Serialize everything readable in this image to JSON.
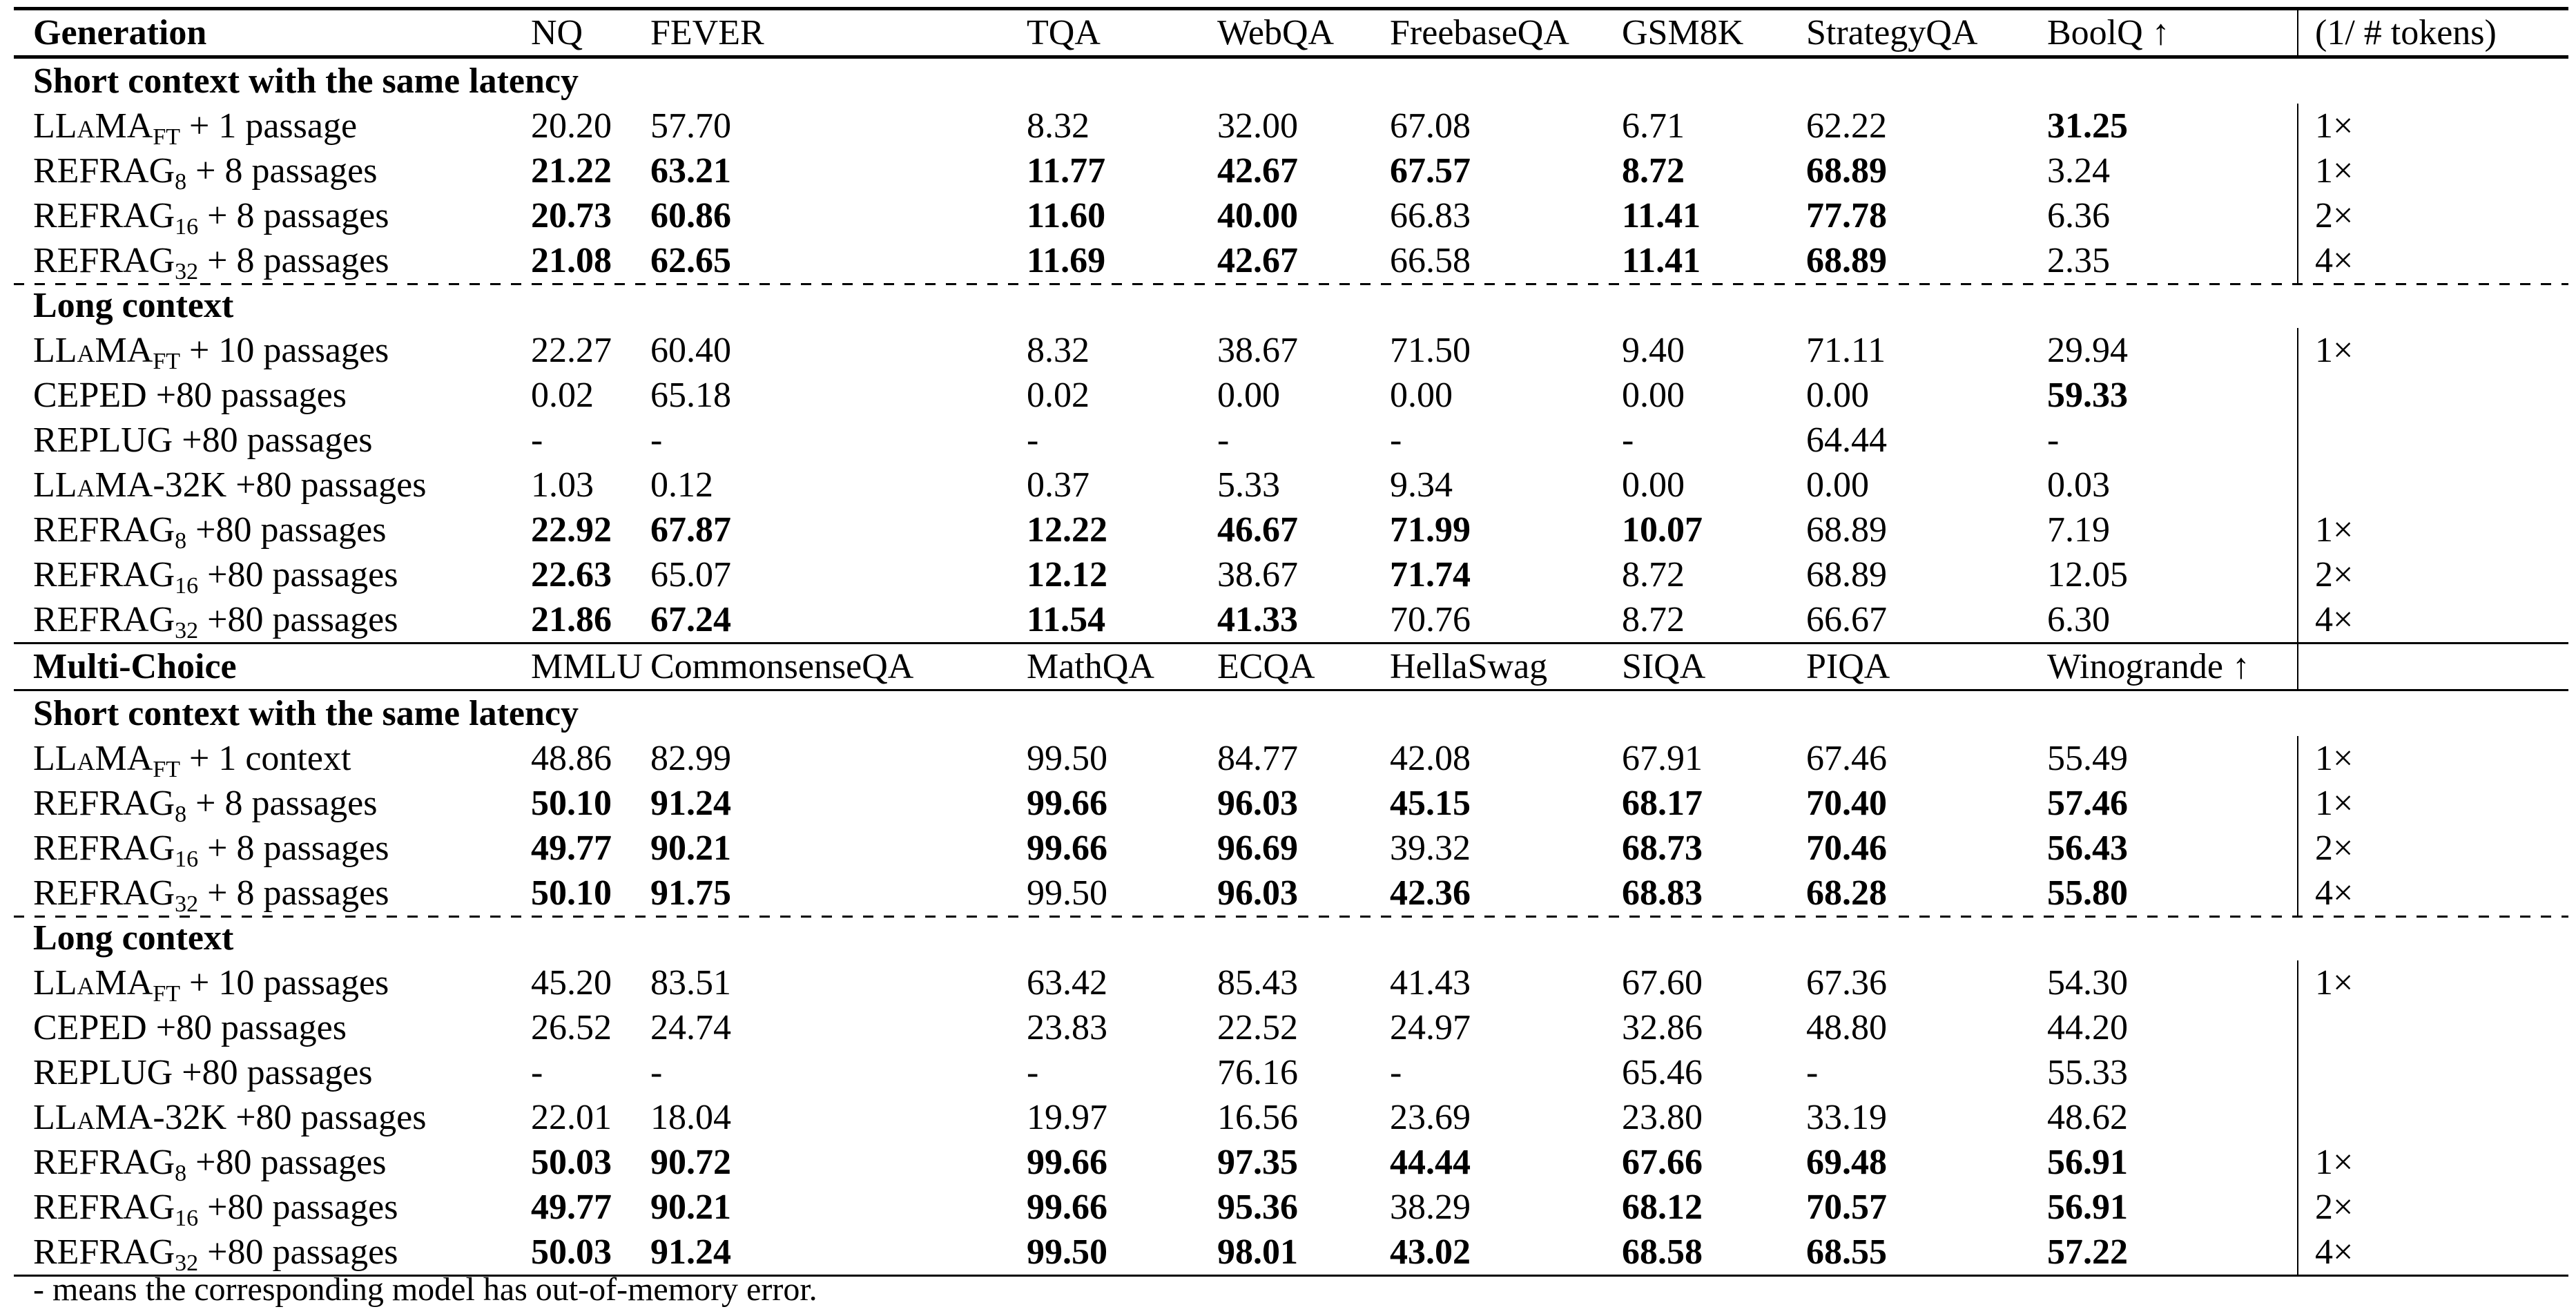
{
  "blocks": [
    {
      "header": [
        "Generation",
        "NQ",
        "FEVER",
        "TQA",
        "WebQA",
        "FreebaseQA",
        "GSM8K",
        "StrategyQA",
        "BoolQ ↑",
        "(1/ # tokens)"
      ],
      "groups": [
        {
          "title": "Short context with the same latency",
          "rows": [
            {
              "model": "LLaMA",
              "sub": "FT",
              "suffix": " + 1 passage",
              "values": [
                "20.20",
                "57.70",
                "8.32",
                "32.00",
                "67.08",
                "6.71",
                "62.22",
                "31.25"
              ],
              "bold": [
                7
              ],
              "ratio": "1×"
            },
            {
              "model": "REFRAG",
              "sub": "8",
              "suffix": " + 8 passages",
              "values": [
                "21.22",
                "63.21",
                "11.77",
                "42.67",
                "67.57",
                "8.72",
                "68.89",
                "3.24"
              ],
              "bold": [
                0,
                1,
                2,
                3,
                4,
                5,
                6
              ],
              "ratio": "1×"
            },
            {
              "model": "REFRAG",
              "sub": "16",
              "suffix": " + 8 passages",
              "values": [
                "20.73",
                "60.86",
                "11.60",
                "40.00",
                "66.83",
                "11.41",
                "77.78",
                "6.36"
              ],
              "bold": [
                0,
                1,
                2,
                3,
                5,
                6
              ],
              "ratio": "2×"
            },
            {
              "model": "REFRAG",
              "sub": "32",
              "suffix": " + 8 passages",
              "values": [
                "21.08",
                "62.65",
                "11.69",
                "42.67",
                "66.58",
                "11.41",
                "68.89",
                "2.35"
              ],
              "bold": [
                0,
                1,
                2,
                3,
                5,
                6
              ],
              "ratio": "4×"
            }
          ]
        },
        {
          "title": "Long context",
          "rows": [
            {
              "model": "LLaMA",
              "sub": "FT",
              "suffix": " + 10 passages",
              "values": [
                "22.27",
                "60.40",
                "8.32",
                "38.67",
                "71.50",
                "9.40",
                "71.11",
                "29.94"
              ],
              "bold": [],
              "ratio": "1×"
            },
            {
              "model": "CEPED",
              "sub": "",
              "suffix": " +80 passages",
              "values": [
                "0.02",
                "65.18",
                "0.02",
                "0.00",
                "0.00",
                "0.00",
                "0.00",
                "59.33"
              ],
              "bold": [
                7
              ],
              "ratio": ""
            },
            {
              "model": "REPLUG",
              "sub": "",
              "suffix": " +80 passages",
              "values": [
                "-",
                "-",
                "-",
                "-",
                "-",
                "-",
                "64.44",
                "-"
              ],
              "bold": [],
              "ratio": ""
            },
            {
              "model": "LLaMA",
              "sub": "",
              "suffix": "-32K +80 passages",
              "values": [
                "1.03",
                "0.12",
                "0.37",
                "5.33",
                "9.34",
                "0.00",
                "0.00",
                "0.03"
              ],
              "bold": [],
              "ratio": ""
            },
            {
              "model": "REFRAG",
              "sub": "8",
              "suffix": " +80 passages",
              "values": [
                "22.92",
                "67.87",
                "12.22",
                "46.67",
                "71.99",
                "10.07",
                "68.89",
                "7.19"
              ],
              "bold": [
                0,
                1,
                2,
                3,
                4,
                5
              ],
              "ratio": "1×"
            },
            {
              "model": "REFRAG",
              "sub": "16",
              "suffix": " +80 passages",
              "values": [
                "22.63",
                "65.07",
                "12.12",
                "38.67",
                "71.74",
                "8.72",
                "68.89",
                "12.05"
              ],
              "bold": [
                0,
                2,
                4
              ],
              "ratio": "2×"
            },
            {
              "model": "REFRAG",
              "sub": "32",
              "suffix": " +80 passages",
              "values": [
                "21.86",
                "67.24",
                "11.54",
                "41.33",
                "70.76",
                "8.72",
                "66.67",
                "6.30"
              ],
              "bold": [
                0,
                1,
                2,
                3
              ],
              "ratio": "4×"
            }
          ]
        }
      ]
    },
    {
      "header": [
        "Multi-Choice",
        "MMLU",
        "CommonsenseQA",
        "MathQA",
        "ECQA",
        "HellaSwag",
        "SIQA",
        "PIQA",
        "Winogrande ↑",
        ""
      ],
      "groups": [
        {
          "title": "Short context with the same latency",
          "rows": [
            {
              "model": "LLaMA",
              "sub": "FT",
              "suffix": " + 1 context",
              "values": [
                "48.86",
                "82.99",
                "99.50",
                "84.77",
                "42.08",
                "67.91",
                "67.46",
                "55.49"
              ],
              "bold": [],
              "ratio": "1×"
            },
            {
              "model": "REFRAG",
              "sub": "8",
              "suffix": " + 8 passages",
              "values": [
                "50.10",
                "91.24",
                "99.66",
                "96.03",
                "45.15",
                "68.17",
                "70.40",
                "57.46"
              ],
              "bold": [
                0,
                1,
                2,
                3,
                4,
                5,
                6,
                7
              ],
              "ratio": "1×"
            },
            {
              "model": "REFRAG",
              "sub": "16",
              "suffix": " + 8 passages",
              "values": [
                "49.77",
                "90.21",
                "99.66",
                "96.69",
                "39.32",
                "68.73",
                "70.46",
                "56.43"
              ],
              "bold": [
                0,
                1,
                2,
                3,
                5,
                6,
                7
              ],
              "ratio": "2×"
            },
            {
              "model": "REFRAG",
              "sub": "32",
              "suffix": " + 8 passages",
              "values": [
                "50.10",
                "91.75",
                "99.50",
                "96.03",
                "42.36",
                "68.83",
                "68.28",
                "55.80"
              ],
              "bold": [
                0,
                1,
                3,
                4,
                5,
                6,
                7
              ],
              "ratio": "4×"
            }
          ]
        },
        {
          "title": "Long context",
          "rows": [
            {
              "model": "LLaMA",
              "sub": "FT",
              "suffix": " + 10 passages",
              "values": [
                "45.20",
                "83.51",
                "63.42",
                "85.43",
                "41.43",
                "67.60",
                "67.36",
                "54.30"
              ],
              "bold": [],
              "ratio": "1×"
            },
            {
              "model": "CEPED",
              "sub": "",
              "suffix": " +80 passages",
              "values": [
                "26.52",
                "24.74",
                "23.83",
                "22.52",
                "24.97",
                "32.86",
                "48.80",
                "44.20"
              ],
              "bold": [],
              "ratio": ""
            },
            {
              "model": "REPLUG",
              "sub": "",
              "suffix": " +80 passages",
              "values": [
                "-",
                "-",
                "-",
                "76.16",
                "-",
                "65.46",
                "-",
                "55.33"
              ],
              "bold": [],
              "ratio": ""
            },
            {
              "model": "LLaMA",
              "sub": "",
              "suffix": "-32K +80 passages",
              "values": [
                "22.01",
                "18.04",
                "19.97",
                "16.56",
                "23.69",
                "23.80",
                "33.19",
                "48.62"
              ],
              "bold": [],
              "ratio": ""
            },
            {
              "model": "REFRAG",
              "sub": "8",
              "suffix": " +80 passages",
              "values": [
                "50.03",
                "90.72",
                "99.66",
                "97.35",
                "44.44",
                "67.66",
                "69.48",
                "56.91"
              ],
              "bold": [
                0,
                1,
                2,
                3,
                4,
                5,
                6,
                7
              ],
              "ratio": "1×"
            },
            {
              "model": "REFRAG",
              "sub": "16",
              "suffix": " +80 passages",
              "values": [
                "49.77",
                "90.21",
                "99.66",
                "95.36",
                "38.29",
                "68.12",
                "70.57",
                "56.91"
              ],
              "bold": [
                0,
                1,
                2,
                3,
                5,
                6,
                7
              ],
              "ratio": "2×"
            },
            {
              "model": "REFRAG",
              "sub": "32",
              "suffix": " +80 passages",
              "values": [
                "50.03",
                "91.24",
                "99.50",
                "98.01",
                "43.02",
                "68.58",
                "68.55",
                "57.22"
              ],
              "bold": [
                0,
                1,
                2,
                3,
                4,
                5,
                6,
                7
              ],
              "ratio": "4×"
            }
          ]
        }
      ]
    }
  ],
  "footnote": "- means the corresponding model has out-of-memory error."
}
